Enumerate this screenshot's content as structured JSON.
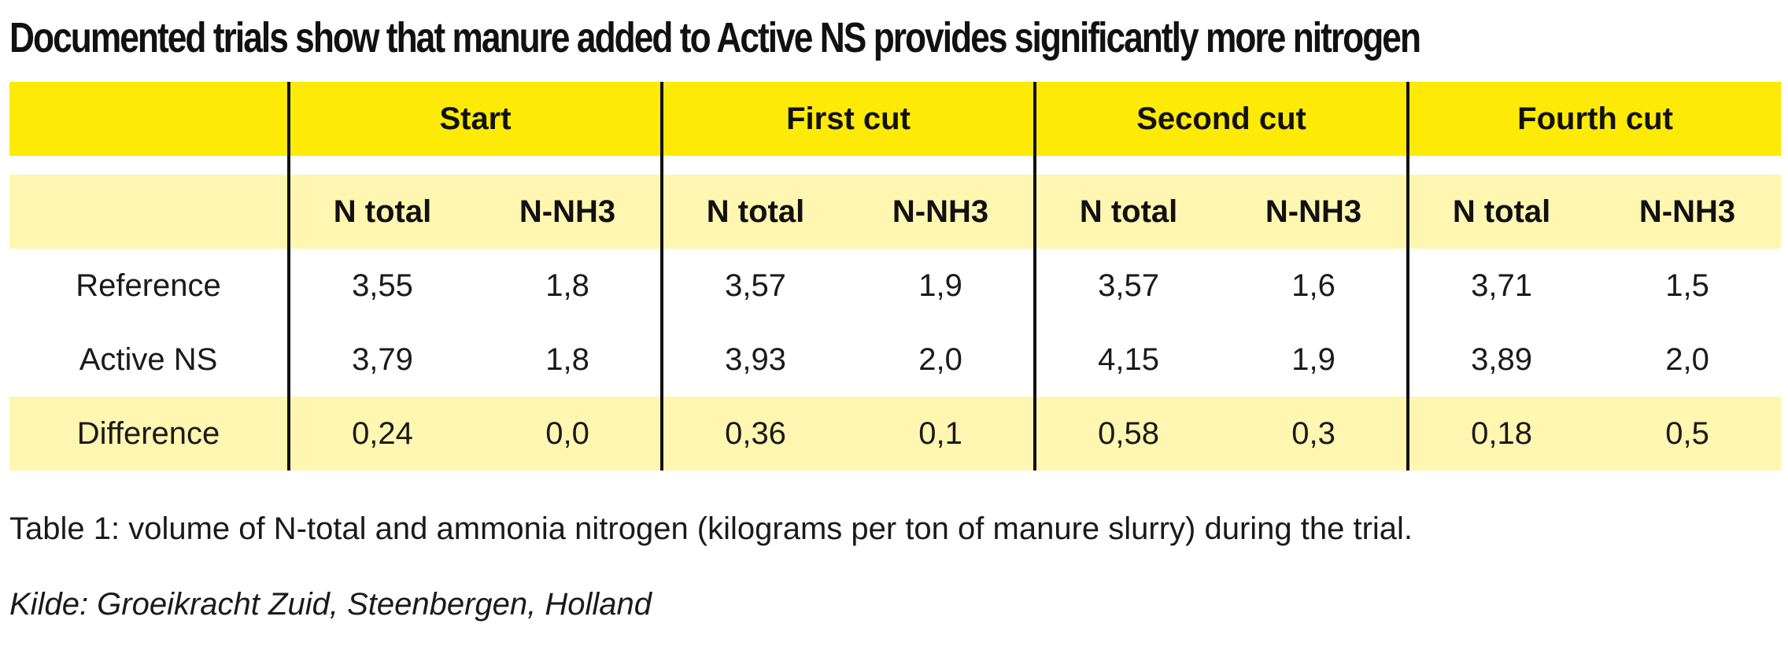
{
  "title": "Documented trials show that manure added to Active NS provides significantly more nitrogen",
  "table": {
    "periods": [
      "Start",
      "First cut",
      "Second cut",
      "Fourth cut"
    ],
    "subheaders": [
      "N total",
      "N-NH3"
    ],
    "rows": [
      {
        "label": "Reference",
        "values": [
          "3,55",
          "1,8",
          "3,57",
          "1,9",
          "3,57",
          "1,6",
          "3,71",
          "1,5"
        ]
      },
      {
        "label": "Active NS",
        "values": [
          "3,79",
          "1,8",
          "3,93",
          "2,0",
          "4,15",
          "1,9",
          "3,89",
          "2,0"
        ]
      },
      {
        "label": "Difference",
        "values": [
          "0,24",
          "0,0",
          "0,36",
          "0,1",
          "0,58",
          "0,3",
          "0,18",
          "0,5"
        ]
      }
    ],
    "colors": {
      "header": "#fdea07",
      "shade": "#fff6b1",
      "rule": "#111111"
    }
  },
  "caption": "Table 1: volume of N-total and ammonia nitrogen (kilograms per ton of manure slurry) during the trial.",
  "source": "Kilde: Groeikracht Zuid, Steenbergen, Holland"
}
